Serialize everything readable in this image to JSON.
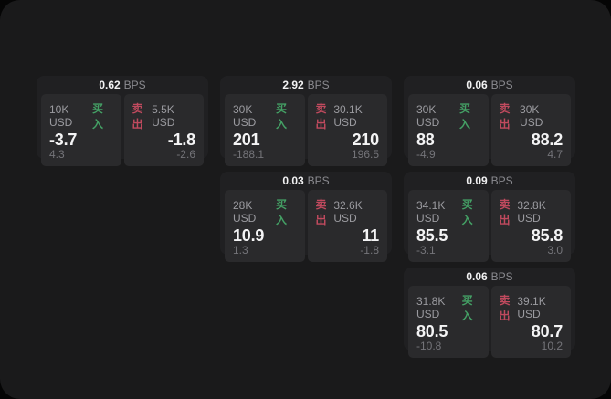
{
  "labels": {
    "bps_unit": "BPS",
    "buy": "买入",
    "sell": "卖出"
  },
  "colors": {
    "background": "#050505",
    "container": "#1a1a1b",
    "card": "#202022",
    "panel": "#2a2a2c",
    "buy_green": "#44a065",
    "sell_red": "#c04a5e",
    "value_white": "#f4f4f5",
    "label_gray": "#9b9ba0",
    "sub_gray": "#747479"
  },
  "cards": [
    {
      "bps": "0.62",
      "buy": {
        "size": "10K USD",
        "value": "-3.7",
        "sub": "4.3"
      },
      "sell": {
        "size": "5.5K USD",
        "value": "-1.8",
        "sub": "-2.6"
      }
    },
    {
      "bps": "2.92",
      "buy": {
        "size": "30K USD",
        "value": "201",
        "sub": "-188.1"
      },
      "sell": {
        "size": "30.1K USD",
        "value": "210",
        "sub": "196.5"
      }
    },
    {
      "bps": "0.06",
      "buy": {
        "size": "30K USD",
        "value": "88",
        "sub": "-4.9"
      },
      "sell": {
        "size": "30K USD",
        "value": "88.2",
        "sub": "4.7"
      }
    },
    {
      "bps": "0.03",
      "buy": {
        "size": "28K USD",
        "value": "10.9",
        "sub": "1.3"
      },
      "sell": {
        "size": "32.6K USD",
        "value": "11",
        "sub": "-1.8"
      }
    },
    {
      "bps": "0.09",
      "buy": {
        "size": "34.1K USD",
        "value": "85.5",
        "sub": "-3.1"
      },
      "sell": {
        "size": "32.8K USD",
        "value": "85.8",
        "sub": "3.0"
      }
    },
    {
      "bps": "0.06",
      "buy": {
        "size": "31.8K USD",
        "value": "80.5",
        "sub": "-10.8"
      },
      "sell": {
        "size": "39.1K USD",
        "value": "80.7",
        "sub": "10.2"
      }
    }
  ]
}
